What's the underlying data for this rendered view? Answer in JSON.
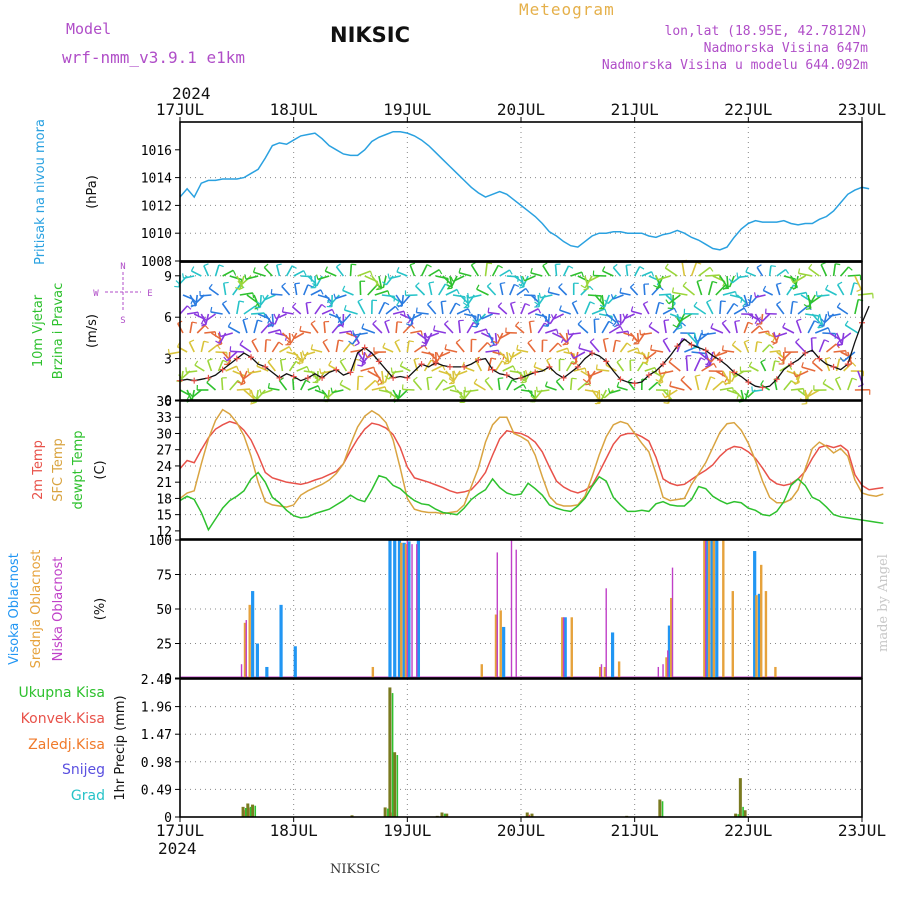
{
  "header": {
    "model_label": "Model",
    "model_name": "wrf-nmm_v3.9.1 e1km",
    "station": "NIKSIC",
    "product": "Meteogram",
    "coords": "lon,lat (18.95E, 42.7812N)",
    "elevation": "Nadmorska Visina 647m",
    "model_elevation": "Nadmorska Visina u modelu 644.092m",
    "year_top": "2024",
    "year_bottom": "2024",
    "footer_station": "NIKSIC",
    "credit": "made by Angel"
  },
  "colors": {
    "pressure": "#2aa1e0",
    "temp2m": "#e8524a",
    "sfc": "#d9a441",
    "dew": "#2ec12e",
    "high_cloud": "#2196f3",
    "mid_cloud": "#e6a23c",
    "low_cloud": "#c040c8",
    "precip_total": "#7a7a20",
    "precip_conv": "#e8524a",
    "precip_grid": "#2ec12e"
  },
  "panel_labels": {
    "pressure": [
      "Pritisak na nivou mora",
      "(hPa)"
    ],
    "wind": [
      "10m Vjetar",
      "Brzina i Pravac",
      "(m/s)"
    ],
    "temp": [
      "2m Temp",
      "SFC Temp",
      "dewpt Temp",
      "(C)"
    ],
    "cloud": [
      "Visoka Oblacnost",
      "Srednja Oblacnost",
      "Niska Oblacnost",
      "(%)"
    ],
    "precip_axis": "1hr Precip (mm)",
    "precip_legend": [
      "Ukupna Kisa",
      "Konvek.Kisa",
      "Zaledj.Kisa",
      "Snijeg",
      "Grad"
    ],
    "compass": {
      "n": "N",
      "s": "S",
      "e": "E",
      "w": "W"
    }
  },
  "chart_data": [
    {
      "type": "line",
      "title": "",
      "x_ticks": [
        "17JUL",
        "18JUL",
        "19JUL",
        "20JUL",
        "21JUL",
        "22JUL",
        "23JUL"
      ],
      "ylabel": "Pritisak na nivou mora (hPa)",
      "ylim": [
        1008,
        1018
      ],
      "y_ticks": [
        "1008",
        "1010",
        "1012",
        "1014",
        "1016"
      ],
      "series": [
        {
          "values": [
            1012.6,
            1013.2,
            1012.6,
            1013.6,
            1013.8,
            1013.8,
            1013.9,
            1013.9,
            1013.9,
            1014.0,
            1014.3,
            1014.6,
            1015.4,
            1016.3,
            1016.5,
            1016.4,
            1016.7,
            1017.0,
            1017.1,
            1017.2,
            1016.8,
            1016.3,
            1016.0,
            1015.7,
            1015.6,
            1015.6,
            1016.0,
            1016.6,
            1016.9,
            1017.1,
            1017.3,
            1017.3,
            1017.2,
            1017.0,
            1016.7,
            1016.3,
            1015.8,
            1015.3,
            1014.8,
            1014.3,
            1013.8,
            1013.3,
            1012.9,
            1012.6,
            1012.8,
            1013.0,
            1012.8,
            1012.4,
            1012.0,
            1011.6,
            1011.2,
            1010.7,
            1010.1,
            1009.8,
            1009.4,
            1009.1,
            1009.0,
            1009.4,
            1009.8,
            1010.0,
            1010.0,
            1010.1,
            1010.1,
            1010.0,
            1010.0,
            1010.0,
            1009.8,
            1009.7,
            1009.9,
            1010.0,
            1010.2,
            1010.0,
            1009.7,
            1009.5,
            1009.2,
            1008.9,
            1008.8,
            1009.0,
            1009.7,
            1010.3,
            1010.7,
            1010.9,
            1010.8,
            1010.8,
            1010.8,
            1010.9,
            1010.7,
            1010.6,
            1010.7,
            1010.7,
            1011.0,
            1011.2,
            1011.6,
            1012.2,
            1012.8,
            1013.1,
            1013.3,
            1013.2
          ]
        }
      ]
    },
    {
      "type": "scatter",
      "title": "",
      "x_ticks": [
        "17JUL",
        "18JUL",
        "19JUL",
        "20JUL",
        "21JUL",
        "22JUL",
        "23JUL"
      ],
      "ylabel": "10m Vjetar Brzina i Pravac (m/s)",
      "ylim": [
        0,
        10
      ],
      "y_ticks": [
        "0",
        "3",
        "6",
        "9"
      ],
      "series": [
        {
          "name": "",
          "values": [
            1.4,
            1.5,
            1.4,
            1.5,
            1.6,
            1.8,
            2.2,
            2.6,
            3.0,
            3.4,
            3.1,
            2.6,
            2.4,
            2.0,
            1.6,
            1.9,
            1.7,
            1.4,
            1.6,
            1.9,
            1.6,
            2.0,
            2.2,
            1.8,
            2.0,
            3.4,
            3.8,
            3.4,
            2.8,
            2.2,
            1.6,
            1.7,
            1.6,
            2.1,
            2.6,
            2.4,
            2.7,
            2.5,
            2.4,
            2.4,
            2.4,
            2.6,
            2.9,
            3.0,
            2.2,
            1.9,
            1.8,
            1.5,
            1.6,
            1.8,
            2.0,
            2.1,
            2.4,
            1.9,
            1.6,
            2.0,
            2.4,
            3.0,
            3.4,
            3.2,
            2.8,
            2.1,
            1.5,
            1.3,
            1.2,
            1.3,
            1.8,
            2.1,
            2.6,
            3.2,
            3.9,
            4.4,
            4.0,
            3.8,
            3.6,
            3.2,
            2.9,
            2.5,
            2.0,
            1.7,
            1.3,
            1.0,
            0.9,
            1.0,
            1.5,
            2.2,
            2.6,
            2.9,
            3.4,
            3.6,
            3.0,
            2.6,
            2.4,
            2.2,
            2.6,
            4.2,
            5.6,
            6.8
          ]
        }
      ]
    },
    {
      "type": "line",
      "title": "",
      "x_ticks": [
        "17JUL",
        "18JUL",
        "19JUL",
        "20JUL",
        "21JUL",
        "22JUL",
        "23JUL"
      ],
      "ylabel": "Temp (C)",
      "ylim": [
        10.5,
        36
      ],
      "y_ticks": [
        "12",
        "15",
        "18",
        "21",
        "24",
        "27",
        "30",
        "33",
        "36"
      ],
      "series": [
        {
          "name": "2m Temp",
          "values": [
            23.5,
            25.0,
            24.6,
            27.0,
            29.2,
            30.8,
            31.6,
            32.2,
            31.8,
            30.6,
            28.8,
            26.0,
            22.8,
            21.8,
            21.4,
            21.0,
            20.8,
            20.6,
            20.9,
            21.4,
            21.8,
            22.4,
            23.0,
            24.4,
            26.8,
            29.0,
            30.8,
            31.9,
            31.6,
            31.0,
            29.8,
            27.4,
            23.8,
            21.8,
            21.4,
            21.0,
            20.5,
            20.0,
            19.4,
            19.0,
            19.2,
            19.6,
            21.0,
            22.8,
            26.0,
            29.0,
            30.5,
            30.2,
            30.0,
            29.4,
            28.4,
            26.6,
            23.8,
            21.2,
            20.1,
            19.4,
            19.0,
            19.5,
            20.4,
            22.8,
            25.4,
            28.0,
            29.6,
            30.0,
            30.0,
            29.4,
            28.6,
            25.6,
            21.6,
            20.8,
            20.4,
            20.6,
            21.5,
            22.4,
            23.2,
            24.2,
            25.8,
            27.0,
            27.6,
            27.4,
            26.6,
            25.4,
            23.6,
            21.6,
            20.7,
            20.4,
            20.7,
            21.6,
            23.0,
            25.4,
            27.4,
            27.8,
            27.4,
            27.8,
            26.8,
            22.4,
            20.4,
            19.6,
            19.8,
            20.0
          ]
        },
        {
          "name": "SFC Temp",
          "values": [
            18.0,
            19.0,
            19.4,
            24.4,
            29.0,
            32.4,
            34.4,
            33.6,
            32.0,
            29.6,
            25.8,
            21.0,
            17.4,
            16.8,
            16.6,
            16.4,
            16.8,
            18.6,
            19.4,
            20.0,
            20.6,
            21.4,
            22.6,
            24.4,
            28.0,
            31.2,
            33.2,
            34.2,
            33.4,
            32.0,
            28.8,
            23.6,
            18.0,
            16.0,
            15.6,
            15.4,
            15.4,
            15.2,
            15.4,
            15.6,
            16.8,
            20.2,
            23.6,
            28.4,
            31.6,
            33.0,
            33.0,
            30.0,
            29.4,
            28.6,
            26.0,
            22.0,
            18.4,
            17.0,
            16.6,
            16.6,
            16.8,
            18.4,
            22.0,
            26.0,
            29.4,
            31.6,
            32.2,
            31.8,
            30.0,
            28.2,
            26.6,
            22.6,
            18.2,
            17.6,
            17.8,
            18.0,
            20.6,
            22.6,
            24.6,
            27.4,
            30.2,
            31.8,
            32.0,
            30.6,
            28.2,
            25.0,
            21.2,
            18.2,
            17.2,
            17.2,
            17.8,
            19.6,
            23.4,
            27.2,
            28.4,
            27.6,
            26.4,
            27.2,
            25.8,
            21.4,
            19.0,
            18.6,
            18.4,
            18.8
          ]
        },
        {
          "name": "dewpt Temp",
          "values": [
            17.6,
            18.4,
            17.8,
            15.4,
            12.2,
            14.2,
            16.2,
            17.6,
            18.4,
            19.4,
            21.6,
            22.8,
            21.0,
            18.2,
            17.2,
            15.8,
            14.8,
            14.4,
            14.6,
            15.2,
            15.6,
            16.0,
            16.8,
            17.6,
            18.6,
            17.8,
            17.4,
            19.6,
            22.2,
            21.8,
            20.4,
            19.8,
            18.6,
            17.6,
            17.0,
            16.8,
            16.0,
            15.4,
            15.2,
            15.0,
            16.2,
            17.8,
            18.8,
            19.6,
            21.6,
            20.0,
            19.0,
            18.6,
            18.8,
            20.8,
            19.8,
            18.6,
            16.8,
            16.2,
            15.8,
            15.6,
            16.6,
            18.0,
            20.2,
            22.0,
            21.2,
            18.2,
            16.8,
            15.6,
            15.6,
            15.8,
            15.6,
            17.0,
            17.4,
            16.8,
            16.6,
            16.6,
            17.8,
            20.2,
            19.8,
            18.4,
            17.6,
            17.0,
            17.4,
            17.2,
            16.2,
            15.8,
            15.0,
            14.8,
            15.6,
            17.4,
            20.4,
            21.6,
            20.4,
            18.2,
            17.6,
            16.4,
            15.0,
            14.6,
            14.4,
            14.2,
            14.0,
            13.8,
            13.6,
            13.4
          ]
        }
      ]
    },
    {
      "type": "bar",
      "title": "",
      "x_ticks": [
        "17JUL",
        "18JUL",
        "19JUL",
        "20JUL",
        "21JUL",
        "22JUL",
        "23JUL"
      ],
      "ylabel": "Oblacnost (%)",
      "ylim": [
        0,
        100
      ],
      "y_ticks": [
        "0",
        "25",
        "50",
        "75",
        "100"
      ],
      "series": [
        {
          "name": "Visoka Oblacnost",
          "points": [
            [
              15,
              63
            ],
            [
              16,
              25
            ],
            [
              18,
              8
            ],
            [
              21,
              53
            ],
            [
              24,
              23
            ],
            [
              44,
              100
            ],
            [
              45,
              100
            ],
            [
              46,
              100
            ],
            [
              47,
              98
            ],
            [
              48,
              99
            ],
            [
              50,
              100
            ],
            [
              68,
              37
            ],
            [
              81,
              44
            ],
            [
              91,
              33
            ],
            [
              103,
              38
            ],
            [
              111,
              100
            ],
            [
              112,
              100
            ],
            [
              113,
              100
            ],
            [
              121,
              92
            ],
            [
              122,
              61
            ]
          ]
        },
        {
          "name": "Srednja Oblacnost",
          "points": [
            [
              13,
              40
            ],
            [
              14,
              53
            ],
            [
              40,
              8
            ],
            [
              46,
              98
            ],
            [
              47,
              97
            ],
            [
              63,
              10
            ],
            [
              66,
              46
            ],
            [
              67,
              49
            ],
            [
              80,
              44
            ],
            [
              82,
              44
            ],
            [
              88,
              8
            ],
            [
              89,
              8
            ],
            [
              92,
              12
            ],
            [
              102,
              15
            ],
            [
              103,
              58
            ],
            [
              110,
              100
            ],
            [
              111,
              100
            ],
            [
              112,
              100
            ],
            [
              114,
              100
            ],
            [
              116,
              63
            ],
            [
              121,
              60
            ],
            [
              122,
              82
            ],
            [
              123,
              63
            ],
            [
              125,
              8
            ]
          ]
        },
        {
          "name": "Niska Oblacnost",
          "points": [
            [
              12,
              10
            ],
            [
              13,
              42
            ],
            [
              47,
              100
            ],
            [
              48,
              97
            ],
            [
              49,
              97
            ],
            [
              66,
              91
            ],
            [
              69,
              100
            ],
            [
              70,
              93
            ],
            [
              80,
              44
            ],
            [
              88,
              10
            ],
            [
              89,
              65
            ],
            [
              100,
              8
            ],
            [
              101,
              10
            ],
            [
              102,
              20
            ],
            [
              103,
              80
            ],
            [
              110,
              100
            ]
          ]
        }
      ]
    },
    {
      "type": "bar",
      "title": "",
      "x_ticks": [
        "17JUL",
        "18JUL",
        "19JUL",
        "20JUL",
        "21JUL",
        "22JUL",
        "23JUL"
      ],
      "ylabel": "1hr Precip (mm)",
      "ylim": [
        0,
        2.45
      ],
      "y_ticks": [
        "0",
        "0.49",
        "0.98",
        "1.47",
        "1.96",
        "2.45"
      ],
      "series": [
        {
          "name": "Ukupna Kisa",
          "points": [
            [
              13,
              0.18
            ],
            [
              14,
              0.24
            ],
            [
              15,
              0.22
            ],
            [
              36,
              0.03
            ],
            [
              43,
              0.17
            ],
            [
              44,
              2.3
            ],
            [
              45,
              1.15
            ],
            [
              54,
              0.02
            ],
            [
              55,
              0.08
            ],
            [
              56,
              0.06
            ],
            [
              73,
              0.08
            ],
            [
              74,
              0.06
            ],
            [
              94,
              0.02
            ],
            [
              101,
              0.31
            ],
            [
              117,
              0.06
            ],
            [
              118,
              0.69
            ],
            [
              119,
              0.12
            ]
          ]
        },
        {
          "name": "Konvek.Kisa",
          "points": [
            [
              13,
              0.12
            ],
            [
              14,
              0.16
            ],
            [
              44,
              0.08
            ],
            [
              73,
              0.04
            ]
          ]
        },
        {
          "name": "Grad",
          "points": [
            [
              13,
              0.16
            ],
            [
              14,
              0.18
            ],
            [
              15,
              0.2
            ],
            [
              43,
              0.15
            ],
            [
              44,
              2.2
            ],
            [
              45,
              1.1
            ],
            [
              55,
              0.06
            ],
            [
              101,
              0.28
            ],
            [
              117,
              0.05
            ],
            [
              118,
              0.18
            ]
          ]
        }
      ]
    }
  ]
}
